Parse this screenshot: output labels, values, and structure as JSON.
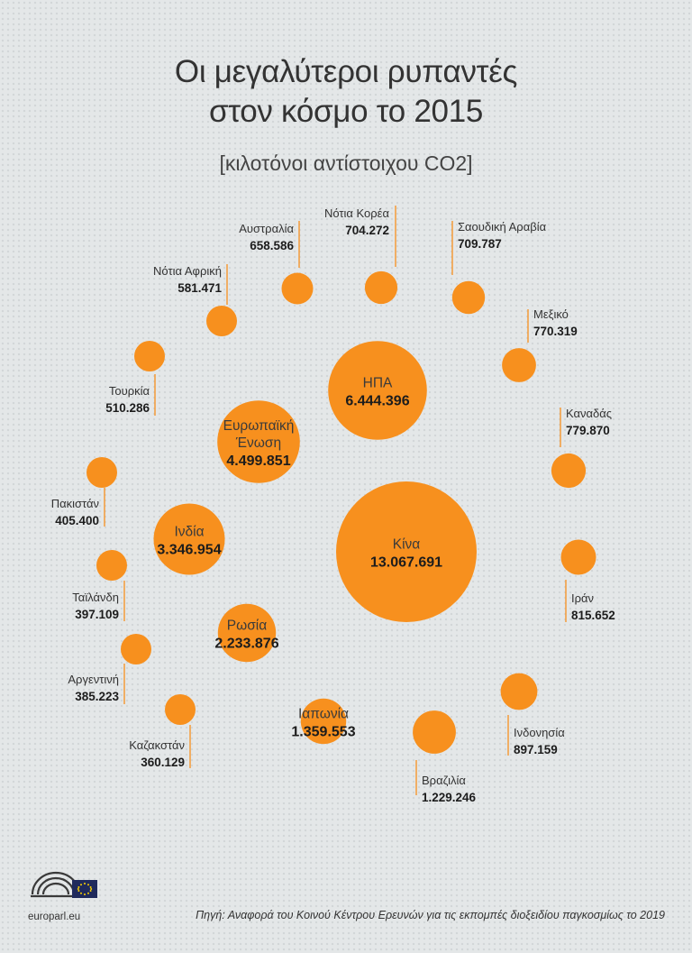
{
  "header": {
    "title_line1": "Οι μεγαλύτεροι ρυπαντές",
    "title_line2": "στον κόσμο το 2015",
    "subtitle": "[κιλοτόνοι αντίστοιχου CO2]"
  },
  "chart_data": {
    "type": "bubble",
    "title": "Οι μεγαλύτεροι ρυπαντές στον κόσμο το 2015",
    "subtitle": "[κιλοτόνοι αντίστοιχου CO2]",
    "unit": "κιλοτόνοι αντίστοιχου CO2",
    "color": "#f7901e",
    "points": [
      {
        "name": "Κίνα",
        "value": 13067.691,
        "label": "13.067.691"
      },
      {
        "name": "ΗΠΑ",
        "value": 6444.396,
        "label": "6.444.396"
      },
      {
        "name": "Ευρωπαϊκή Ένωση",
        "name_lines": [
          "Ευρωπαϊκή",
          "Ένωση"
        ],
        "value": 4499.851,
        "label": "4.499.851"
      },
      {
        "name": "Ινδία",
        "value": 3346.954,
        "label": "3.346.954"
      },
      {
        "name": "Ρωσία",
        "value": 2233.876,
        "label": "2.233.876"
      },
      {
        "name": "Ιαπωνία",
        "value": 1359.553,
        "label": "1.359.553"
      },
      {
        "name": "Βραζιλία",
        "value": 1229.246,
        "label": "1.229.246"
      },
      {
        "name": "Ινδονησία",
        "value": 897.159,
        "label": "897.159"
      },
      {
        "name": "Ιράν",
        "value": 815.652,
        "label": "815.652"
      },
      {
        "name": "Καναδάς",
        "value": 779.87,
        "label": "779.870"
      },
      {
        "name": "Μεξικό",
        "value": 770.319,
        "label": "770.319"
      },
      {
        "name": "Σαουδική Αραβία",
        "value": 709.787,
        "label": "709.787"
      },
      {
        "name": "Νότια Κορέα",
        "value": 704.272,
        "label": "704.272"
      },
      {
        "name": "Αυστραλία",
        "value": 658.586,
        "label": "658.586"
      },
      {
        "name": "Νότια Αφρική",
        "value": 581.471,
        "label": "581.471"
      },
      {
        "name": "Τουρκία",
        "value": 510.286,
        "label": "510.286"
      },
      {
        "name": "Πακιστάν",
        "value": 405.4,
        "label": "405.400"
      },
      {
        "name": "Ταϊλάνδη",
        "value": 397.109,
        "label": "397.109"
      },
      {
        "name": "Αργεντινή",
        "value": 385.223,
        "label": "385.223"
      },
      {
        "name": "Καζακστάν",
        "value": 360.129,
        "label": "360.129"
      }
    ]
  },
  "footer": {
    "site": "europarl.eu",
    "source": "Πηγή: Αναφορά του Κοινού Κέντρου Ερευνών για τις εκπομπές διοξειδίου παγκοσμίως το 2019"
  }
}
